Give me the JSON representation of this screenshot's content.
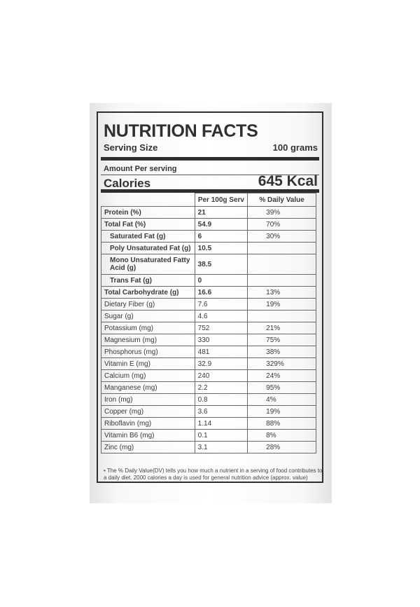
{
  "label": {
    "title": "NUTRITION FACTS",
    "serving_size_label": "Serving Size",
    "serving_size_value": "100 grams",
    "amount_per_serving": "Amount Per serving",
    "calories_label": "Calories",
    "calories_value": "645 Kcal"
  },
  "table": {
    "headers": [
      "",
      "Per 100g Serv",
      "% Daily Value"
    ],
    "rows": [
      {
        "name": "Protein (%)",
        "amount": "21",
        "dv": "39%",
        "bold": true
      },
      {
        "name": "Total Fat (%)",
        "amount": "54.9",
        "dv": "70%",
        "bold": true
      },
      {
        "name": "Saturated Fat (g)",
        "amount": "6",
        "dv": "30%",
        "bold": true,
        "indent": true
      },
      {
        "name": "Poly Unsaturated Fat (g)",
        "amount": "10.5",
        "dv": "",
        "bold": true,
        "indent": true
      },
      {
        "name": "Mono Unsaturated Fatty Acid (g)",
        "amount": "38.5",
        "dv": "",
        "bold": true,
        "indent": true,
        "tall": true
      },
      {
        "name": "Trans Fat (g)",
        "amount": "0",
        "dv": "",
        "bold": true,
        "indent": true
      },
      {
        "name": "Total Carbohydrate (g)",
        "amount": "16.6",
        "dv": "13%",
        "bold": true
      },
      {
        "name": "Dietary Fiber (g)",
        "amount": "7.6",
        "dv": "19%"
      },
      {
        "name": "Sugar (g)",
        "amount": "4.6",
        "dv": ""
      },
      {
        "name": "Potassium (mg)",
        "amount": "752",
        "dv": "21%"
      },
      {
        "name": "Magnesium (mg)",
        "amount": "330",
        "dv": "75%"
      },
      {
        "name": "Phosphorus (mg)",
        "amount": "481",
        "dv": "38%"
      },
      {
        "name": "Vitamin E (mg)",
        "amount": "32.9",
        "dv": "329%"
      },
      {
        "name": "Calcium (mg)",
        "amount": "240",
        "dv": "24%"
      },
      {
        "name": "Manganese (mg)",
        "amount": "2.2",
        "dv": "95%"
      },
      {
        "name": "Iron (mg)",
        "amount": "0.8",
        "dv": "4%"
      },
      {
        "name": "Copper (mg)",
        "amount": "3.6",
        "dv": "19%"
      },
      {
        "name": "Riboflavin (mg)",
        "amount": "1.14",
        "dv": "88%"
      },
      {
        "name": "Vitamin B6 (mg)",
        "amount": "0.1",
        "dv": "8%"
      },
      {
        "name": "Zinc (mg)",
        "amount": "3.1",
        "dv": "28%"
      }
    ]
  },
  "footnote": "• The % Daily Value(DV) tells you how much a nutrient in a serving of food contributes to a daily diet. 2000 calories a day is used for general nutrition advice (approx. value)",
  "colors": {
    "ink": "#2e2e2e",
    "background": "#ffffff"
  }
}
